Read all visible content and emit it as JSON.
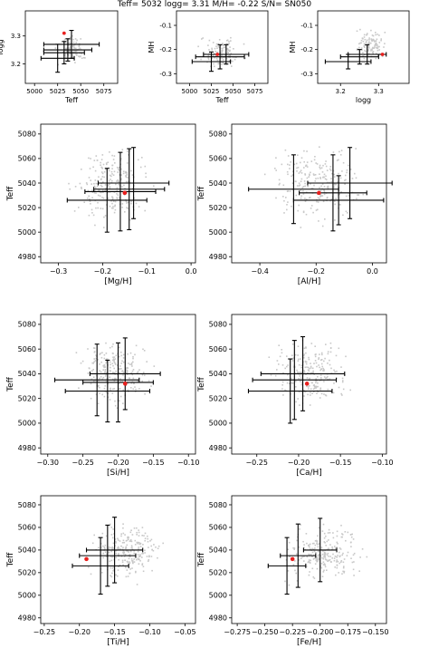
{
  "figure": {
    "title": "Teff= 5032 logg= 3.31 M/H= -0.22 S/N= SN050",
    "colors": {
      "cloud": "#c8c8c8",
      "star": "#e8201e",
      "errorbar": "#000000",
      "frame": "#000000"
    }
  },
  "chart_data": [
    {
      "type": "scatter",
      "xlabel": "Teff",
      "ylabel": "logg",
      "xlim": [
        4990,
        5090
      ],
      "ylim": [
        3.13,
        3.39
      ],
      "xticks": [
        5000,
        5025,
        5050,
        5075
      ],
      "xtick_labels": [
        "5000",
        "5025",
        "5050",
        "5075"
      ],
      "yticks": [
        3.2,
        3.3
      ],
      "ytick_labels": [
        "3.2",
        "3.3"
      ],
      "cloud": {
        "x": [
          5022,
          5058
        ],
        "y": [
          3.19,
          3.31
        ]
      },
      "point": {
        "x": 5032,
        "y": 3.31
      },
      "error_bars": [
        {
          "x": 5025,
          "y": 3.22,
          "xerr": 18,
          "yerr": 0.05
        },
        {
          "x": 5032,
          "y": 3.24,
          "xerr": 22,
          "yerr": 0.04
        },
        {
          "x": 5036,
          "y": 3.25,
          "xerr": 26,
          "yerr": 0.04
        },
        {
          "x": 5040,
          "y": 3.27,
          "xerr": 30,
          "yerr": 0.05
        }
      ]
    },
    {
      "type": "scatter",
      "xlabel": "Teff",
      "ylabel": "MH",
      "xlim": [
        4985,
        5090
      ],
      "ylim": [
        -0.34,
        -0.04
      ],
      "xticks": [
        5000,
        5025,
        5050,
        5075
      ],
      "xtick_labels": [
        "5000",
        "5025",
        "5050",
        "5075"
      ],
      "yticks": [
        -0.1,
        -0.2,
        -0.3
      ],
      "ytick_labels": [
        "-0.1",
        "-0.2",
        "-0.3"
      ],
      "cloud": {
        "x": [
          5005,
          5070
        ],
        "y": [
          -0.3,
          -0.12
        ]
      },
      "point": {
        "x": 5032,
        "y": -0.22
      },
      "error_bars": [
        {
          "x": 5025,
          "y": -0.25,
          "xerr": 22,
          "yerr": 0.04
        },
        {
          "x": 5035,
          "y": -0.23,
          "xerr": 28,
          "yerr": 0.05
        },
        {
          "x": 5042,
          "y": -0.22,
          "xerr": 26,
          "yerr": 0.04
        }
      ]
    },
    {
      "type": "scatter",
      "xlabel": "logg",
      "ylabel": "MH",
      "xlim": [
        3.14,
        3.38
      ],
      "ylim": [
        -0.34,
        -0.04
      ],
      "xticks": [
        3.2,
        3.3
      ],
      "xtick_labels": [
        "3.2",
        "3.3"
      ],
      "yticks": [
        -0.1,
        -0.2,
        -0.3
      ],
      "ytick_labels": [
        "-0.1",
        "-0.2",
        "-0.3"
      ],
      "cloud": {
        "x": [
          3.23,
          3.33
        ],
        "y": [
          -0.26,
          -0.1
        ]
      },
      "point": {
        "x": 3.31,
        "y": -0.22
      },
      "error_bars": [
        {
          "x": 3.22,
          "y": -0.25,
          "xerr": 0.06,
          "yerr": 0.03
        },
        {
          "x": 3.25,
          "y": -0.23,
          "xerr": 0.05,
          "yerr": 0.03
        },
        {
          "x": 3.27,
          "y": -0.22,
          "xerr": 0.05,
          "yerr": 0.04
        }
      ]
    },
    {
      "type": "scatter",
      "xlabel": "[Mg/H]",
      "ylabel": "Teff",
      "xlim": [
        -0.34,
        0.01
      ],
      "ylim": [
        4975,
        5088
      ],
      "xticks": [
        -0.3,
        -0.2,
        -0.1,
        0.0
      ],
      "xtick_labels": [
        "−0.3",
        "−0.2",
        "−0.1",
        "0.0"
      ],
      "yticks": [
        4980,
        5000,
        5020,
        5040,
        5060,
        5080
      ],
      "ytick_labels": [
        "4980",
        "5000",
        "5020",
        "5040",
        "5060",
        "5080"
      ],
      "cloud": {
        "x": [
          -0.29,
          -0.07
        ],
        "y": [
          5000,
          5078
        ]
      },
      "point": {
        "x": -0.15,
        "y": 5032
      },
      "error_bars": [
        {
          "x": -0.19,
          "y": 5026,
          "xerr": 0.09,
          "yerr": 26
        },
        {
          "x": -0.16,
          "y": 5033,
          "xerr": 0.08,
          "yerr": 32
        },
        {
          "x": -0.14,
          "y": 5035,
          "xerr": 0.08,
          "yerr": 33
        },
        {
          "x": -0.13,
          "y": 5040,
          "xerr": 0.08,
          "yerr": 29
        }
      ]
    },
    {
      "type": "scatter",
      "xlabel": "[Al/H]",
      "ylabel": "Teff",
      "xlim": [
        -0.5,
        0.05
      ],
      "ylim": [
        4975,
        5088
      ],
      "xticks": [
        -0.4,
        -0.2,
        0.0
      ],
      "xtick_labels": [
        "−0.4",
        "−0.2",
        "0.0"
      ],
      "yticks": [
        4980,
        5000,
        5020,
        5040,
        5060,
        5080
      ],
      "ytick_labels": [
        "4980",
        "5000",
        "5020",
        "5040",
        "5060",
        "5080"
      ],
      "cloud": {
        "x": [
          -0.42,
          0.01
        ],
        "y": [
          5000,
          5078
        ]
      },
      "point": {
        "x": -0.19,
        "y": 5032
      },
      "error_bars": [
        {
          "x": -0.28,
          "y": 5035,
          "xerr": 0.16,
          "yerr": 28
        },
        {
          "x": -0.12,
          "y": 5026,
          "xerr": 0.16,
          "yerr": 20
        },
        {
          "x": -0.08,
          "y": 5040,
          "xerr": 0.15,
          "yerr": 29
        },
        {
          "x": -0.14,
          "y": 5032,
          "xerr": 0.12,
          "yerr": 31
        }
      ]
    },
    {
      "type": "scatter",
      "xlabel": "[Si/H]",
      "ylabel": "Teff",
      "xlim": [
        -0.31,
        -0.09
      ],
      "ylim": [
        4975,
        5088
      ],
      "xticks": [
        -0.3,
        -0.25,
        -0.2,
        -0.15,
        -0.1
      ],
      "xtick_labels": [
        "−0.30",
        "−0.25",
        "−0.20",
        "−0.15",
        "−0.10"
      ],
      "yticks": [
        4980,
        5000,
        5020,
        5040,
        5060,
        5080
      ],
      "ytick_labels": [
        "4980",
        "5000",
        "5020",
        "5040",
        "5060",
        "5080"
      ],
      "cloud": {
        "x": [
          -0.27,
          -0.14
        ],
        "y": [
          5005,
          5075
        ]
      },
      "point": {
        "x": -0.19,
        "y": 5032
      },
      "error_bars": [
        {
          "x": -0.23,
          "y": 5035,
          "xerr": 0.06,
          "yerr": 29
        },
        {
          "x": -0.215,
          "y": 5026,
          "xerr": 0.06,
          "yerr": 25
        },
        {
          "x": -0.2,
          "y": 5033,
          "xerr": 0.05,
          "yerr": 32
        },
        {
          "x": -0.19,
          "y": 5040,
          "xerr": 0.05,
          "yerr": 29
        }
      ]
    },
    {
      "type": "scatter",
      "xlabel": "[Ca/H]",
      "ylabel": "Teff",
      "xlim": [
        -0.28,
        -0.095
      ],
      "ylim": [
        4975,
        5088
      ],
      "xticks": [
        -0.25,
        -0.2,
        -0.15,
        -0.1
      ],
      "xtick_labels": [
        "−0.25",
        "−0.20",
        "−0.15",
        "−0.10"
      ],
      "yticks": [
        4980,
        5000,
        5020,
        5040,
        5060,
        5080
      ],
      "ytick_labels": [
        "4980",
        "5000",
        "5020",
        "5040",
        "5060",
        "5080"
      ],
      "cloud": {
        "x": [
          -0.24,
          -0.13
        ],
        "y": [
          5005,
          5075
        ]
      },
      "point": {
        "x": -0.19,
        "y": 5032
      },
      "error_bars": [
        {
          "x": -0.21,
          "y": 5026,
          "xerr": 0.05,
          "yerr": 26
        },
        {
          "x": -0.205,
          "y": 5035,
          "xerr": 0.05,
          "yerr": 32
        },
        {
          "x": -0.195,
          "y": 5040,
          "xerr": 0.05,
          "yerr": 30
        }
      ]
    },
    {
      "type": "scatter",
      "xlabel": "[Ti/H]",
      "ylabel": "Teff",
      "xlim": [
        -0.255,
        -0.035
      ],
      "ylim": [
        4975,
        5088
      ],
      "xticks": [
        -0.25,
        -0.2,
        -0.15,
        -0.1,
        -0.05
      ],
      "xtick_labels": [
        "−0.25",
        "−0.20",
        "−0.15",
        "−0.10",
        "−0.05"
      ],
      "yticks": [
        4980,
        5000,
        5020,
        5040,
        5060,
        5080
      ],
      "ytick_labels": [
        "4980",
        "5000",
        "5020",
        "5040",
        "5060",
        "5080"
      ],
      "cloud": {
        "x": [
          -0.2,
          -0.07
        ],
        "y": [
          5005,
          5070
        ]
      },
      "point": {
        "x": -0.19,
        "y": 5032
      },
      "error_bars": [
        {
          "x": -0.17,
          "y": 5026,
          "xerr": 0.04,
          "yerr": 25
        },
        {
          "x": -0.16,
          "y": 5035,
          "xerr": 0.04,
          "yerr": 27
        },
        {
          "x": -0.15,
          "y": 5040,
          "xerr": 0.04,
          "yerr": 29
        }
      ]
    },
    {
      "type": "scatter",
      "xlabel": "[Fe/H]",
      "ylabel": "Teff",
      "xlim": [
        -0.28,
        -0.14
      ],
      "ylim": [
        4975,
        5088
      ],
      "xticks": [
        -0.275,
        -0.25,
        -0.225,
        -0.2,
        -0.175,
        -0.15
      ],
      "xtick_labels": [
        "−0.275",
        "−0.250",
        "−0.225",
        "−0.200",
        "−0.175",
        "−0.150"
      ],
      "yticks": [
        4980,
        5000,
        5020,
        5040,
        5060,
        5080
      ],
      "ytick_labels": [
        "4980",
        "5000",
        "5020",
        "5040",
        "5060",
        "5080"
      ],
      "cloud": {
        "x": [
          -0.24,
          -0.155
        ],
        "y": [
          5005,
          5070
        ]
      },
      "point": {
        "x": -0.225,
        "y": 5032
      },
      "error_bars": [
        {
          "x": -0.23,
          "y": 5026,
          "xerr": 0.017,
          "yerr": 25
        },
        {
          "x": -0.22,
          "y": 5035,
          "xerr": 0.016,
          "yerr": 28
        },
        {
          "x": -0.2,
          "y": 5040,
          "xerr": 0.015,
          "yerr": 28
        }
      ]
    }
  ]
}
